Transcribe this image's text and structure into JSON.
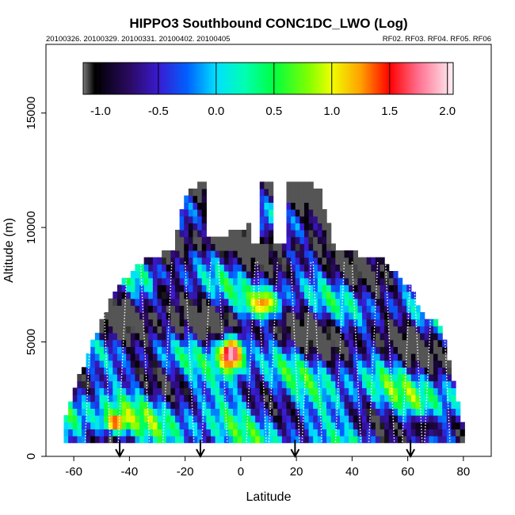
{
  "chart_data": {
    "type": "heatmap",
    "title": "HIPPO3 Southbound CONC1DC_LWO (Log)",
    "subtitle_left": "20100326. 20100329. 20100331. 20100402. 20100405",
    "subtitle_right": "RF02. RF03. RF04. RF05. RF06",
    "xlabel": "Latitude",
    "ylabel": "Altitude (m)",
    "xlim": [
      -70,
      90
    ],
    "ylim": [
      0,
      18000
    ],
    "x_ticks": [
      -60,
      -40,
      -20,
      0,
      20,
      40,
      60,
      80
    ],
    "y_ticks": [
      0,
      5000,
      10000,
      15000
    ],
    "colorbar": {
      "range": [
        -1.15,
        2.05
      ],
      "ticks": [
        "-1.0",
        "-0.5",
        "0.0",
        "0.5",
        "1.0",
        "1.5",
        "2.0"
      ],
      "tick_values": [
        -1.0,
        -0.5,
        0.0,
        0.5,
        1.0,
        1.5,
        2.0
      ],
      "colors": [
        {
          "v": -1.15,
          "c": "#7a7a7a"
        },
        {
          "v": -1.05,
          "c": "#000000"
        },
        {
          "v": -0.75,
          "c": "#2a0a60"
        },
        {
          "v": -0.5,
          "c": "#3a1ad0"
        },
        {
          "v": -0.25,
          "c": "#0060ff"
        },
        {
          "v": 0.0,
          "c": "#00e0ff"
        },
        {
          "v": 0.25,
          "c": "#00ffb0"
        },
        {
          "v": 0.5,
          "c": "#00ff40"
        },
        {
          "v": 0.8,
          "c": "#80ff00"
        },
        {
          "v": 1.0,
          "c": "#f0ff00"
        },
        {
          "v": 1.25,
          "c": "#ffa000"
        },
        {
          "v": 1.5,
          "c": "#ff0000"
        },
        {
          "v": 1.75,
          "c": "#ff7090"
        },
        {
          "v": 2.05,
          "c": "#fff0f4"
        }
      ]
    },
    "envelope": [
      [
        -64,
        1500
      ],
      [
        -60,
        2800
      ],
      [
        -55,
        4500
      ],
      [
        -50,
        6000
      ],
      [
        -45,
        7300
      ],
      [
        -40,
        8000
      ],
      [
        -35,
        8500
      ],
      [
        -30,
        8800
      ],
      [
        -24,
        9000
      ],
      [
        -20,
        11500
      ],
      [
        -13,
        12000
      ],
      [
        -4,
        10000
      ],
      [
        2,
        10000
      ],
      [
        8,
        12000
      ],
      [
        17,
        12000
      ],
      [
        28,
        11800
      ],
      [
        34,
        9000
      ],
      [
        45,
        8800
      ],
      [
        52,
        8500
      ],
      [
        60,
        7500
      ],
      [
        66,
        6200
      ],
      [
        72,
        5800
      ],
      [
        76,
        3500
      ],
      [
        80,
        1200
      ],
      [
        80,
        500
      ],
      [
        -63,
        500
      ]
    ],
    "gaps": [
      {
        "x": [
          -13,
          -5
        ],
        "alt_from": 9500
      },
      {
        "x": [
          3,
          7
        ],
        "alt_from": 9300
      },
      {
        "x": [
          12,
          17
        ],
        "alt_from": 9300
      }
    ],
    "features": [
      {
        "label": "high-concentration core",
        "lat": -3.5,
        "alt": 4500,
        "value": 2.0,
        "spread_lat": 5,
        "spread_alt": 800
      },
      {
        "label": "upper plume",
        "lat": 8,
        "alt": 6700,
        "value": 1.3,
        "spread_lat": 6,
        "spread_alt": 600
      },
      {
        "label": "low-level maximum",
        "lat": -45,
        "alt": 1500,
        "value": 1.5,
        "spread_lat": 4,
        "spread_alt": 400
      },
      {
        "label": "grey pocket",
        "lat": -28,
        "alt": 7200,
        "value": -1.1,
        "spread_lat": 3,
        "spread_alt": 500
      },
      {
        "label": "northern low layer",
        "lat": 66,
        "alt": 1300,
        "value": -1.0,
        "spread_lat": 6,
        "spread_alt": 500
      }
    ],
    "flight_tracks_lat": [
      -56,
      -50,
      -44,
      -36,
      -28,
      -20,
      -14,
      -8,
      2,
      6,
      10,
      18,
      22,
      26,
      34,
      40,
      46,
      52,
      58,
      62,
      66,
      72
    ],
    "profile_markers_lat": [
      -43.5,
      -14.5,
      19.5,
      61
    ]
  }
}
